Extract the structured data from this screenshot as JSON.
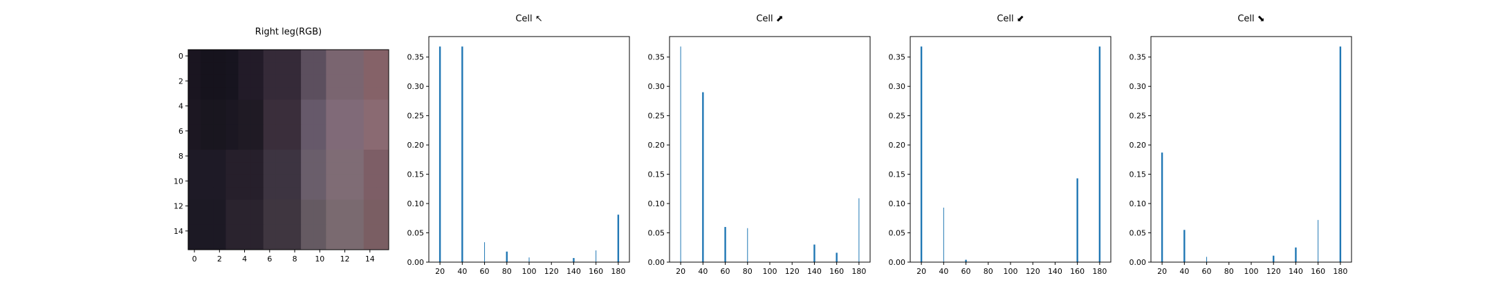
{
  "chart_data": [
    {
      "type": "heatmap",
      "title": "Right leg(RGB)",
      "x_ticks": [
        "0",
        "2",
        "4",
        "6",
        "8",
        "10",
        "12",
        "14"
      ],
      "y_ticks": [
        "0",
        "2",
        "4",
        "6",
        "8",
        "10",
        "12",
        "14"
      ],
      "grid_size": [
        16,
        16
      ],
      "column_colors": [
        "#1a1520",
        "#16131d",
        "#16131d",
        "#17141f",
        "#221b28",
        "#221b28",
        "#352a38",
        "#352a38",
        "#352a38",
        "#5c4f5e",
        "#5c4f5e",
        "#7a6570",
        "#7a6570",
        "#7a6570",
        "#856268",
        "#856268"
      ],
      "row_band_colors": [
        {
          "rows": [
            0,
            3
          ],
          "colors": [
            "#1a1520",
            "#16131d",
            "#16131d",
            "#17141f",
            "#221b28",
            "#221b28",
            "#352a38",
            "#352a38",
            "#352a38",
            "#5c4f5e",
            "#5c4f5e",
            "#7a6570",
            "#7a6570",
            "#7a6570",
            "#856268",
            "#856268"
          ]
        },
        {
          "rows": [
            4,
            7
          ],
          "colors": [
            "#1c1722",
            "#19161f",
            "#19161f",
            "#1b1722",
            "#1f1a24",
            "#1f1a24",
            "#3a2e3b",
            "#3a2e3b",
            "#3a2e3b",
            "#66596a",
            "#66596a",
            "#806a78",
            "#806a78",
            "#806a78",
            "#8a6a72",
            "#8a6a72"
          ]
        },
        {
          "rows": [
            8,
            11
          ],
          "colors": [
            "#1e1a26",
            "#1e1a26",
            "#1e1a26",
            "#261f2b",
            "#261f2b",
            "#261f2b",
            "#3d3441",
            "#3d3441",
            "#3d3441",
            "#6a5e6b",
            "#6a5e6b",
            "#7f6c75",
            "#7f6c75",
            "#7f6c75",
            "#7d5e66",
            "#7d5e66"
          ]
        },
        {
          "rows": [
            12,
            15
          ],
          "colors": [
            "#1c1924",
            "#1c1924",
            "#1c1924",
            "#2a232e",
            "#2a232e",
            "#2a232e",
            "#3f3640",
            "#3f3640",
            "#3f3640",
            "#655a62",
            "#655a62",
            "#7a6a70",
            "#7a6a70",
            "#7a6a70",
            "#7a5e63",
            "#7a5e63"
          ]
        }
      ]
    },
    {
      "type": "bar",
      "title": "Cell ↖",
      "xlim": [
        10,
        190
      ],
      "ylim": [
        0,
        0.385
      ],
      "x_ticks": [
        20,
        40,
        60,
        80,
        100,
        120,
        140,
        160,
        180
      ],
      "y_ticks": [
        0.0,
        0.05,
        0.1,
        0.15,
        0.2,
        0.25,
        0.3,
        0.35
      ],
      "y_tick_labels": [
        "0.00",
        "0.05",
        "0.10",
        "0.15",
        "0.20",
        "0.25",
        "0.30",
        "0.35"
      ],
      "bar_color": "#1f77b4",
      "bars": [
        {
          "x": 20,
          "value": 0.368,
          "weight": "thick"
        },
        {
          "x": 40,
          "value": 0.368,
          "weight": "thick"
        },
        {
          "x": 60,
          "value": 0.034,
          "weight": "thin"
        },
        {
          "x": 80,
          "value": 0.018,
          "weight": "thick"
        },
        {
          "x": 100,
          "value": 0.008,
          "weight": "thin"
        },
        {
          "x": 140,
          "value": 0.007,
          "weight": "thick"
        },
        {
          "x": 160,
          "value": 0.02,
          "weight": "thin"
        },
        {
          "x": 180,
          "value": 0.081,
          "weight": "thick"
        }
      ]
    },
    {
      "type": "bar",
      "title": "Cell ⬈",
      "xlim": [
        10,
        190
      ],
      "ylim": [
        0,
        0.385
      ],
      "x_ticks": [
        20,
        40,
        60,
        80,
        100,
        120,
        140,
        160,
        180
      ],
      "y_ticks": [
        0.0,
        0.05,
        0.1,
        0.15,
        0.2,
        0.25,
        0.3,
        0.35
      ],
      "y_tick_labels": [
        "0.00",
        "0.05",
        "0.10",
        "0.15",
        "0.20",
        "0.25",
        "0.30",
        "0.35"
      ],
      "bar_color": "#1f77b4",
      "bars": [
        {
          "x": 20,
          "value": 0.368,
          "weight": "thin"
        },
        {
          "x": 40,
          "value": 0.29,
          "weight": "thick"
        },
        {
          "x": 60,
          "value": 0.06,
          "weight": "thick"
        },
        {
          "x": 80,
          "value": 0.058,
          "weight": "thin"
        },
        {
          "x": 140,
          "value": 0.03,
          "weight": "thick"
        },
        {
          "x": 160,
          "value": 0.016,
          "weight": "thick"
        },
        {
          "x": 180,
          "value": 0.109,
          "weight": "thin"
        }
      ]
    },
    {
      "type": "bar",
      "title": "Cell ⬋",
      "xlim": [
        10,
        190
      ],
      "ylim": [
        0,
        0.385
      ],
      "x_ticks": [
        20,
        40,
        60,
        80,
        100,
        120,
        140,
        160,
        180
      ],
      "y_ticks": [
        0.0,
        0.05,
        0.1,
        0.15,
        0.2,
        0.25,
        0.3,
        0.35
      ],
      "y_tick_labels": [
        "0.00",
        "0.05",
        "0.10",
        "0.15",
        "0.20",
        "0.25",
        "0.30",
        "0.35"
      ],
      "bar_color": "#1f77b4",
      "bars": [
        {
          "x": 20,
          "value": 0.368,
          "weight": "thick"
        },
        {
          "x": 40,
          "value": 0.093,
          "weight": "thin"
        },
        {
          "x": 60,
          "value": 0.004,
          "weight": "thick"
        },
        {
          "x": 160,
          "value": 0.143,
          "weight": "thick"
        },
        {
          "x": 180,
          "value": 0.368,
          "weight": "thick"
        }
      ]
    },
    {
      "type": "bar",
      "title": "Cell ⬊",
      "xlim": [
        10,
        190
      ],
      "ylim": [
        0,
        0.385
      ],
      "x_ticks": [
        20,
        40,
        60,
        80,
        100,
        120,
        140,
        160,
        180
      ],
      "y_ticks": [
        0.0,
        0.05,
        0.1,
        0.15,
        0.2,
        0.25,
        0.3,
        0.35
      ],
      "y_tick_labels": [
        "0.00",
        "0.05",
        "0.10",
        "0.15",
        "0.20",
        "0.25",
        "0.30",
        "0.35"
      ],
      "bar_color": "#1f77b4",
      "bars": [
        {
          "x": 20,
          "value": 0.187,
          "weight": "thick"
        },
        {
          "x": 40,
          "value": 0.055,
          "weight": "thick"
        },
        {
          "x": 60,
          "value": 0.009,
          "weight": "thin"
        },
        {
          "x": 120,
          "value": 0.011,
          "weight": "thick"
        },
        {
          "x": 140,
          "value": 0.025,
          "weight": "thick"
        },
        {
          "x": 160,
          "value": 0.072,
          "weight": "thin"
        },
        {
          "x": 180,
          "value": 0.368,
          "weight": "thick"
        }
      ]
    }
  ]
}
